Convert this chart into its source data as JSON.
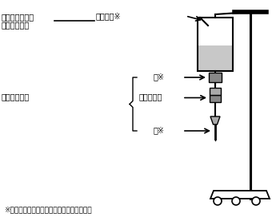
{
  "footnote": "※針は感染性廃棄物と同等の取扱いとする。",
  "label_top_left_1": "感染性廃棄物と",
  "label_top_left_2": "同等の取扱い",
  "label_mid_left": "感染性廃棄物",
  "label_air_needle": "エアー針※",
  "label_needle1": "針※",
  "label_tube": "チューブ類",
  "label_needle2": "針※",
  "bg_color": "#ffffff",
  "line_color": "#000000",
  "gray_dark": "#888888",
  "gray_light": "#c8c8c8",
  "gray_medium": "#aaaaaa",
  "gray_connector": "#999999"
}
